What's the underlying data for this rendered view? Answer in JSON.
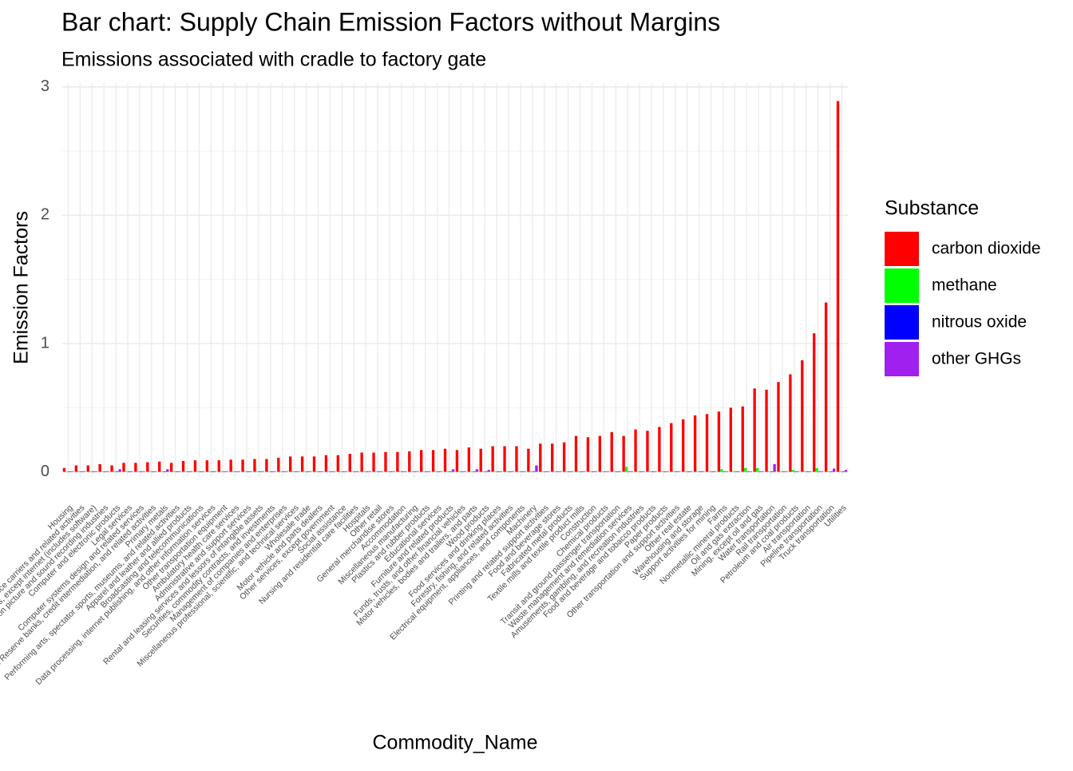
{
  "chart_data": {
    "type": "bar",
    "title": "Bar chart: Supply Chain Emission Factors without Margins",
    "subtitle": "Emissions associated with cradle to factory gate",
    "x_label": "Commodity_Name",
    "y_label": "Emission Factors",
    "legend_title": "Substance",
    "categories": [
      "Housing",
      "Insurance carriers and related activities",
      "Publishing industries, except internet (includes software)",
      "Motion picture and sound recording industries",
      "Computer and electronic products",
      "Legal services",
      "Computer systems design and related services",
      "Federal Reserve banks, credit intermediation, and related activities",
      "Primary metals",
      "Performing arts, spectator sports, museums, and related activities",
      "Apparel and leather and allied products",
      "Broadcasting and telecommunications",
      "Data processing, internet publishing, and other information services",
      "Other transportation equipment",
      "Ambulatory health care services",
      "Administrative and support services",
      "Rental and leasing services and lessors of intangible assets",
      "Securities, commodity contracts, and investments",
      "Management of companies and enterprises",
      "Miscellaneous professional, scientific, and technical services",
      "Wholesale trade",
      "Motor vehicle and parts dealers",
      "Other services, except government",
      "Social assistance",
      "Nursing and residential care facilities",
      "Hospitals",
      "Other retail",
      "General merchandise stores",
      "Accommodation",
      "Miscellaneous manufacturing",
      "Plastics and rubber products",
      "Educational services",
      "Furniture and related products",
      "Funds, trusts, and other financial vehicles",
      "Motor vehicles, bodies and trailers, and parts",
      "Wood products",
      "Food services and drinking places",
      "Forestry, fishing, and related activities",
      "Electrical equipment, appliances, and components",
      "Machinery",
      "Printing and related support activities",
      "Food and beverage stores",
      "Fabricated metal products",
      "Textile mills and textile product mills",
      "Construction",
      "Chemical products",
      "Transit and ground passenger transportation",
      "Waste management and remediation services",
      "Amusements, gambling, and recreation industries",
      "Food and beverage and tobacco products",
      "Paper products",
      "Other transportation and support activities",
      "Other real estate",
      "Warehousing and storage",
      "Support activities for mining",
      "Farms",
      "Nonmetallic mineral products",
      "Oil and gas extraction",
      "Mining, except oil and gas",
      "Water transportation",
      "Rail transportation",
      "Petroleum and coal products",
      "Air transportation",
      "Pipeline transportation",
      "Truck transportation",
      "Utilities"
    ],
    "series": [
      {
        "name": "carbon dioxide",
        "color": "#ff0000",
        "values": [
          0.03,
          0.05,
          0.05,
          0.06,
          0.05,
          0.07,
          0.07,
          0.075,
          0.08,
          0.07,
          0.085,
          0.09,
          0.09,
          0.09,
          0.095,
          0.095,
          0.1,
          0.1,
          0.11,
          0.12,
          0.12,
          0.12,
          0.13,
          0.13,
          0.14,
          0.15,
          0.15,
          0.155,
          0.155,
          0.16,
          0.17,
          0.17,
          0.18,
          0.17,
          0.19,
          0.18,
          0.2,
          0.2,
          0.2,
          0.18,
          0.22,
          0.22,
          0.23,
          0.28,
          0.27,
          0.28,
          0.31,
          0.28,
          0.33,
          0.32,
          0.35,
          0.38,
          0.41,
          0.44,
          0.45,
          0.47,
          0.5,
          0.51,
          0.65,
          0.64,
          0.7,
          0.76,
          0.87,
          1.08,
          1.32,
          2.89
        ]
      },
      {
        "name": "methane",
        "color": "#00ff00",
        "values": [
          0.005,
          0.005,
          0.005,
          0.005,
          0.005,
          0.005,
          0.005,
          0.005,
          0.005,
          0.005,
          0.005,
          0.005,
          0.005,
          0.005,
          0.005,
          0.005,
          0.005,
          0.005,
          0.005,
          0.005,
          0.005,
          0.005,
          0.005,
          0.005,
          0.005,
          0.005,
          0.005,
          0.005,
          0.005,
          0.005,
          0.005,
          0.005,
          0.005,
          0.005,
          0.005,
          0.005,
          0.005,
          0.005,
          0.005,
          0.005,
          0.005,
          0.005,
          0.005,
          0.005,
          0.005,
          0.005,
          0.005,
          0.04,
          0.005,
          0.005,
          0.005,
          0.005,
          0.005,
          0.005,
          0.005,
          0.02,
          0.005,
          0.03,
          0.03,
          0.005,
          0.005,
          0.015,
          0.005,
          0.03,
          0.005,
          0.005
        ]
      },
      {
        "name": "nitrous oxide",
        "color": "#0000ff",
        "values": [
          0.004,
          0.004,
          0.004,
          0.004,
          0.004,
          0.004,
          0.004,
          0.004,
          0.004,
          0.004,
          0.004,
          0.004,
          0.004,
          0.004,
          0.004,
          0.004,
          0.004,
          0.004,
          0.004,
          0.004,
          0.004,
          0.004,
          0.004,
          0.004,
          0.004,
          0.004,
          0.004,
          0.004,
          0.004,
          0.004,
          0.004,
          0.004,
          0.004,
          0.004,
          0.004,
          0.004,
          0.004,
          0.004,
          0.004,
          0.004,
          0.004,
          0.004,
          0.004,
          0.004,
          0.004,
          0.004,
          0.004,
          0.004,
          0.004,
          0.004,
          0.004,
          0.004,
          0.004,
          0.004,
          0.004,
          0.004,
          0.004,
          0.004,
          0.004,
          0.004,
          0.004,
          0.004,
          0.004,
          0.004,
          0.004,
          0.004
        ]
      },
      {
        "name": "other GHGs",
        "color": "#a020f0",
        "values": [
          0.005,
          0.005,
          0.005,
          0.005,
          0.02,
          0.005,
          0.005,
          0.005,
          0.02,
          0.005,
          0.005,
          0.005,
          0.005,
          0.005,
          0.005,
          0.005,
          0.005,
          0.005,
          0.005,
          0.005,
          0.005,
          0.005,
          0.005,
          0.005,
          0.005,
          0.005,
          0.005,
          0.005,
          0.005,
          0.005,
          0.005,
          0.005,
          0.02,
          0.005,
          0.02,
          0.015,
          0.005,
          0.005,
          0.005,
          0.05,
          0.005,
          0.005,
          0.005,
          0.005,
          0.005,
          0.005,
          0.005,
          0.005,
          0.005,
          0.005,
          0.005,
          0.005,
          0.005,
          0.005,
          0.005,
          0.005,
          0.005,
          0.005,
          0.005,
          0.06,
          0.005,
          0.005,
          0.005,
          0.005,
          0.025,
          0.015
        ]
      }
    ],
    "ylim": [
      -0.04,
      3.03
    ],
    "yticks": [
      0,
      1,
      2,
      3
    ],
    "grid": true,
    "legend": "right"
  }
}
